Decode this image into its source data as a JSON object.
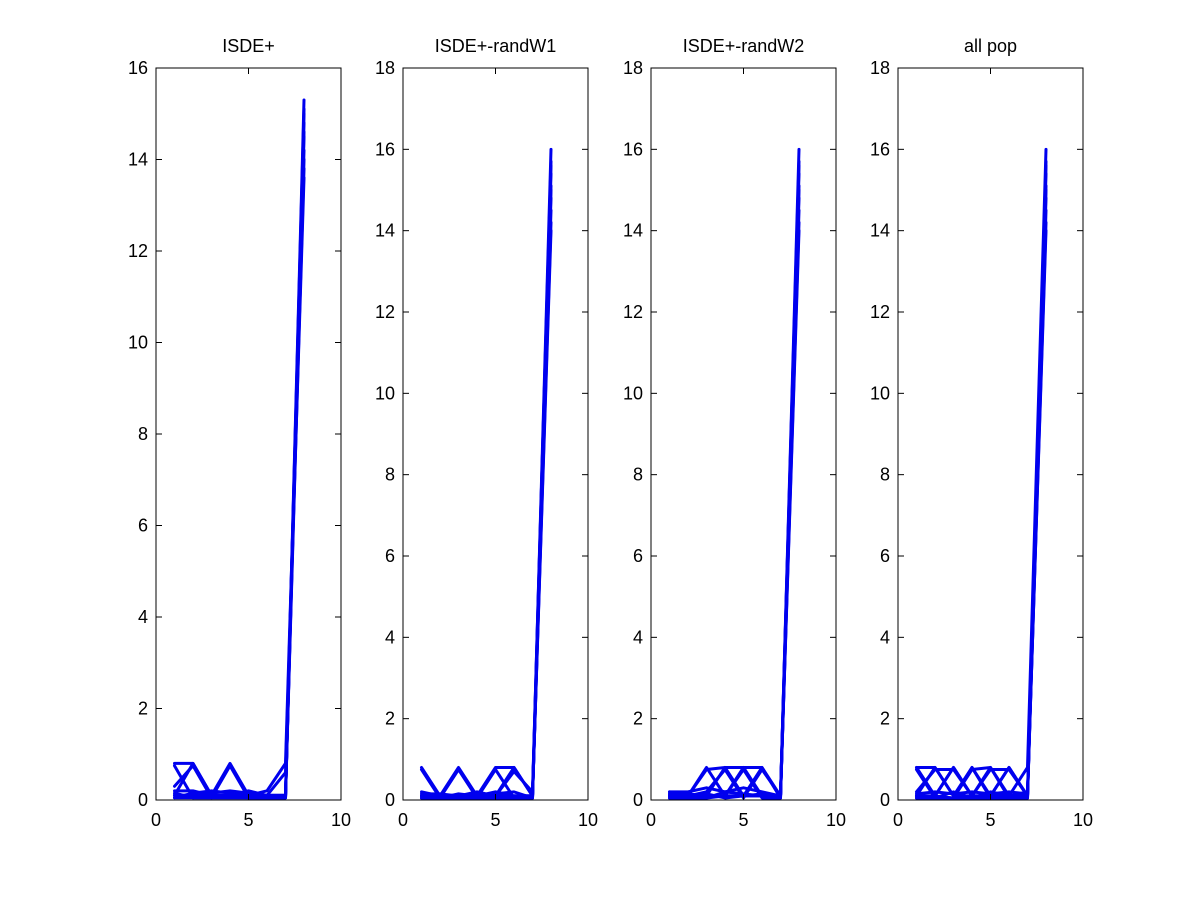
{
  "figure": {
    "background": "#ffffff",
    "line_color": "#0000ee"
  },
  "chart_data": [
    {
      "type": "line",
      "title": "ISDE+",
      "xlim": [
        0,
        10
      ],
      "ylim": [
        0,
        16
      ],
      "xticks": [
        0,
        5,
        10
      ],
      "yticks": [
        0,
        2,
        4,
        6,
        8,
        10,
        12,
        14,
        16
      ],
      "grid": false,
      "series": [
        {
          "x": [
            1,
            2,
            3,
            4,
            5,
            6,
            7,
            8
          ],
          "y": [
            0.8,
            0.8,
            0.1,
            0.1,
            0.1,
            0.1,
            0.1,
            15.3
          ]
        },
        {
          "x": [
            1,
            2,
            3,
            4,
            5,
            6,
            7,
            8
          ],
          "y": [
            0.75,
            0.05,
            0.05,
            0.05,
            0.05,
            0.05,
            0.05,
            15.0
          ]
        },
        {
          "x": [
            1,
            2,
            3,
            4,
            5,
            6,
            7,
            8
          ],
          "y": [
            0.1,
            0.8,
            0.1,
            0.1,
            0.1,
            0.1,
            0.1,
            14.8
          ]
        },
        {
          "x": [
            1,
            2,
            3,
            4,
            5,
            6,
            7,
            8
          ],
          "y": [
            0.3,
            0.75,
            0.05,
            0.05,
            0.05,
            0.05,
            0.05,
            14.5
          ]
        },
        {
          "x": [
            1,
            2,
            3,
            4,
            5,
            6,
            7,
            8
          ],
          "y": [
            0.1,
            0.1,
            0.1,
            0.8,
            0.1,
            0.1,
            0.1,
            14.2
          ]
        },
        {
          "x": [
            1,
            2,
            3,
            4,
            5,
            6,
            7,
            8
          ],
          "y": [
            0.05,
            0.05,
            0.05,
            0.75,
            0.05,
            0.05,
            0.05,
            14.0
          ]
        },
        {
          "x": [
            1,
            2,
            3,
            4,
            5,
            6,
            7,
            8
          ],
          "y": [
            0.2,
            0.2,
            0.1,
            0.1,
            0.1,
            0.2,
            0.8,
            13.8
          ]
        },
        {
          "x": [
            1,
            2,
            3,
            4,
            5,
            6,
            7,
            8
          ],
          "y": [
            0.1,
            0.1,
            0.1,
            0.1,
            0.2,
            0.1,
            0.6,
            13.6
          ]
        },
        {
          "x": [
            1,
            2,
            3,
            4,
            5,
            6,
            7,
            8
          ],
          "y": [
            0.05,
            0.15,
            0.2,
            0.15,
            0.05,
            0.05,
            0.05,
            14.6
          ]
        },
        {
          "x": [
            1,
            2,
            3,
            4,
            5,
            6,
            7,
            8
          ],
          "y": [
            0.15,
            0.05,
            0.15,
            0.2,
            0.15,
            0.1,
            0.05,
            15.1
          ]
        }
      ]
    },
    {
      "type": "line",
      "title": "ISDE+-randW1",
      "xlim": [
        0,
        10
      ],
      "ylim": [
        0,
        18
      ],
      "xticks": [
        0,
        5,
        10
      ],
      "yticks": [
        0,
        2,
        4,
        6,
        8,
        10,
        12,
        14,
        16,
        18
      ],
      "grid": false,
      "series": [
        {
          "x": [
            1,
            2,
            3,
            4,
            5,
            6,
            7,
            8
          ],
          "y": [
            0.8,
            0.1,
            0.1,
            0.1,
            0.1,
            0.1,
            0.1,
            16.0
          ]
        },
        {
          "x": [
            1,
            2,
            3,
            4,
            5,
            6,
            7,
            8
          ],
          "y": [
            0.75,
            0.05,
            0.05,
            0.05,
            0.05,
            0.05,
            0.05,
            15.7
          ]
        },
        {
          "x": [
            1,
            2,
            3,
            4,
            5,
            6,
            7,
            8
          ],
          "y": [
            0.1,
            0.1,
            0.8,
            0.1,
            0.1,
            0.1,
            0.1,
            15.4
          ]
        },
        {
          "x": [
            1,
            2,
            3,
            4,
            5,
            6,
            7,
            8
          ],
          "y": [
            0.05,
            0.05,
            0.75,
            0.05,
            0.05,
            0.05,
            0.05,
            15.1
          ]
        },
        {
          "x": [
            1,
            2,
            3,
            4,
            5,
            6,
            7,
            8
          ],
          "y": [
            0.1,
            0.1,
            0.1,
            0.1,
            0.8,
            0.8,
            0.1,
            14.8
          ]
        },
        {
          "x": [
            1,
            2,
            3,
            4,
            5,
            6,
            7,
            8
          ],
          "y": [
            0.05,
            0.05,
            0.05,
            0.05,
            0.75,
            0.05,
            0.05,
            14.5
          ]
        },
        {
          "x": [
            1,
            2,
            3,
            4,
            5,
            6,
            7,
            8
          ],
          "y": [
            0.1,
            0.1,
            0.1,
            0.1,
            0.1,
            0.8,
            0.1,
            14.2
          ]
        },
        {
          "x": [
            1,
            2,
            3,
            4,
            5,
            6,
            7,
            8
          ],
          "y": [
            0.2,
            0.1,
            0.1,
            0.2,
            0.1,
            0.7,
            0.2,
            15.6
          ]
        },
        {
          "x": [
            1,
            2,
            3,
            4,
            5,
            6,
            7,
            8
          ],
          "y": [
            0.15,
            0.15,
            0.1,
            0.1,
            0.15,
            0.2,
            0.05,
            15.0
          ]
        },
        {
          "x": [
            1,
            2,
            3,
            4,
            5,
            6,
            7,
            8
          ],
          "y": [
            0.1,
            0.05,
            0.15,
            0.1,
            0.2,
            0.1,
            0.1,
            14.0
          ]
        }
      ]
    },
    {
      "type": "line",
      "title": "ISDE+-randW2",
      "xlim": [
        0,
        10
      ],
      "ylim": [
        0,
        18
      ],
      "xticks": [
        0,
        5,
        10
      ],
      "yticks": [
        0,
        2,
        4,
        6,
        8,
        10,
        12,
        14,
        16,
        18
      ],
      "grid": false,
      "series": [
        {
          "x": [
            1,
            2,
            3,
            4,
            5,
            6,
            7,
            8
          ],
          "y": [
            0.2,
            0.1,
            0.1,
            0.8,
            0.1,
            0.1,
            0.1,
            16.0
          ]
        },
        {
          "x": [
            1,
            2,
            3,
            4,
            5,
            6,
            7,
            8
          ],
          "y": [
            0.1,
            0.1,
            0.8,
            0.1,
            0.8,
            0.1,
            0.1,
            15.7
          ]
        },
        {
          "x": [
            1,
            2,
            3,
            4,
            5,
            6,
            7,
            8
          ],
          "y": [
            0.1,
            0.05,
            0.1,
            0.1,
            0.1,
            0.8,
            0.1,
            15.4
          ]
        },
        {
          "x": [
            1,
            2,
            3,
            4,
            5,
            6,
            7,
            8
          ],
          "y": [
            0.05,
            0.1,
            0.75,
            0.8,
            0.8,
            0.8,
            0.05,
            15.1
          ]
        },
        {
          "x": [
            1,
            2,
            3,
            4,
            5,
            6,
            7,
            8
          ],
          "y": [
            0.15,
            0.1,
            0.2,
            0.75,
            0.05,
            0.75,
            0.1,
            14.8
          ]
        },
        {
          "x": [
            1,
            2,
            3,
            4,
            5,
            6,
            7,
            8
          ],
          "y": [
            0.05,
            0.05,
            0.05,
            0.1,
            0.75,
            0.05,
            0.05,
            14.5
          ]
        },
        {
          "x": [
            1,
            2,
            3,
            4,
            5,
            6,
            7,
            8
          ],
          "y": [
            0.1,
            0.15,
            0.1,
            0.1,
            0.1,
            0.1,
            0.1,
            14.2
          ]
        },
        {
          "x": [
            1,
            2,
            3,
            4,
            5,
            6,
            7,
            8
          ],
          "y": [
            0.2,
            0.2,
            0.3,
            0.2,
            0.3,
            0.2,
            0.1,
            15.6
          ]
        },
        {
          "x": [
            1,
            2,
            3,
            4,
            5,
            6,
            7,
            8
          ],
          "y": [
            0.1,
            0.1,
            0.05,
            0.2,
            0.15,
            0.1,
            0.05,
            15.0
          ]
        },
        {
          "x": [
            1,
            2,
            3,
            4,
            5,
            6,
            7,
            8
          ],
          "y": [
            0.15,
            0.05,
            0.15,
            0.05,
            0.1,
            0.15,
            0.1,
            14.0
          ]
        }
      ]
    },
    {
      "type": "line",
      "title": "all pop",
      "xlim": [
        0,
        10
      ],
      "ylim": [
        0,
        18
      ],
      "xticks": [
        0,
        5,
        10
      ],
      "yticks": [
        0,
        2,
        4,
        6,
        8,
        10,
        12,
        14,
        16,
        18
      ],
      "grid": false,
      "series": [
        {
          "x": [
            1,
            2,
            3,
            4,
            5,
            6,
            7,
            8
          ],
          "y": [
            0.8,
            0.1,
            0.8,
            0.1,
            0.8,
            0.1,
            0.8,
            16.0
          ]
        },
        {
          "x": [
            1,
            2,
            3,
            4,
            5,
            6,
            7,
            8
          ],
          "y": [
            0.1,
            0.8,
            0.1,
            0.8,
            0.1,
            0.8,
            0.1,
            15.7
          ]
        },
        {
          "x": [
            1,
            2,
            3,
            4,
            5,
            6,
            7,
            8
          ],
          "y": [
            0.8,
            0.8,
            0.1,
            0.1,
            0.1,
            0.1,
            0.1,
            15.4
          ]
        },
        {
          "x": [
            1,
            2,
            3,
            4,
            5,
            6,
            7,
            8
          ],
          "y": [
            0.75,
            0.05,
            0.05,
            0.8,
            0.05,
            0.05,
            0.05,
            15.1
          ]
        },
        {
          "x": [
            1,
            2,
            3,
            4,
            5,
            6,
            7,
            8
          ],
          "y": [
            0.1,
            0.1,
            0.8,
            0.1,
            0.1,
            0.8,
            0.1,
            14.8
          ]
        },
        {
          "x": [
            1,
            2,
            3,
            4,
            5,
            6,
            7,
            8
          ],
          "y": [
            0.05,
            0.1,
            0.05,
            0.75,
            0.8,
            0.05,
            0.05,
            14.5
          ]
        },
        {
          "x": [
            1,
            2,
            3,
            4,
            5,
            6,
            7,
            8
          ],
          "y": [
            0.2,
            0.75,
            0.75,
            0.1,
            0.75,
            0.75,
            0.1,
            14.2
          ]
        },
        {
          "x": [
            1,
            2,
            3,
            4,
            5,
            6,
            7,
            8
          ],
          "y": [
            0.05,
            0.05,
            0.05,
            0.05,
            0.05,
            0.05,
            0.05,
            15.6
          ]
        },
        {
          "x": [
            1,
            2,
            3,
            4,
            5,
            6,
            7,
            8
          ],
          "y": [
            0.15,
            0.2,
            0.15,
            0.2,
            0.15,
            0.2,
            0.15,
            15.0
          ]
        },
        {
          "x": [
            1,
            2,
            3,
            4,
            5,
            6,
            7,
            8
          ],
          "y": [
            0.1,
            0.05,
            0.2,
            0.05,
            0.2,
            0.1,
            0.2,
            14.0
          ]
        }
      ]
    }
  ]
}
